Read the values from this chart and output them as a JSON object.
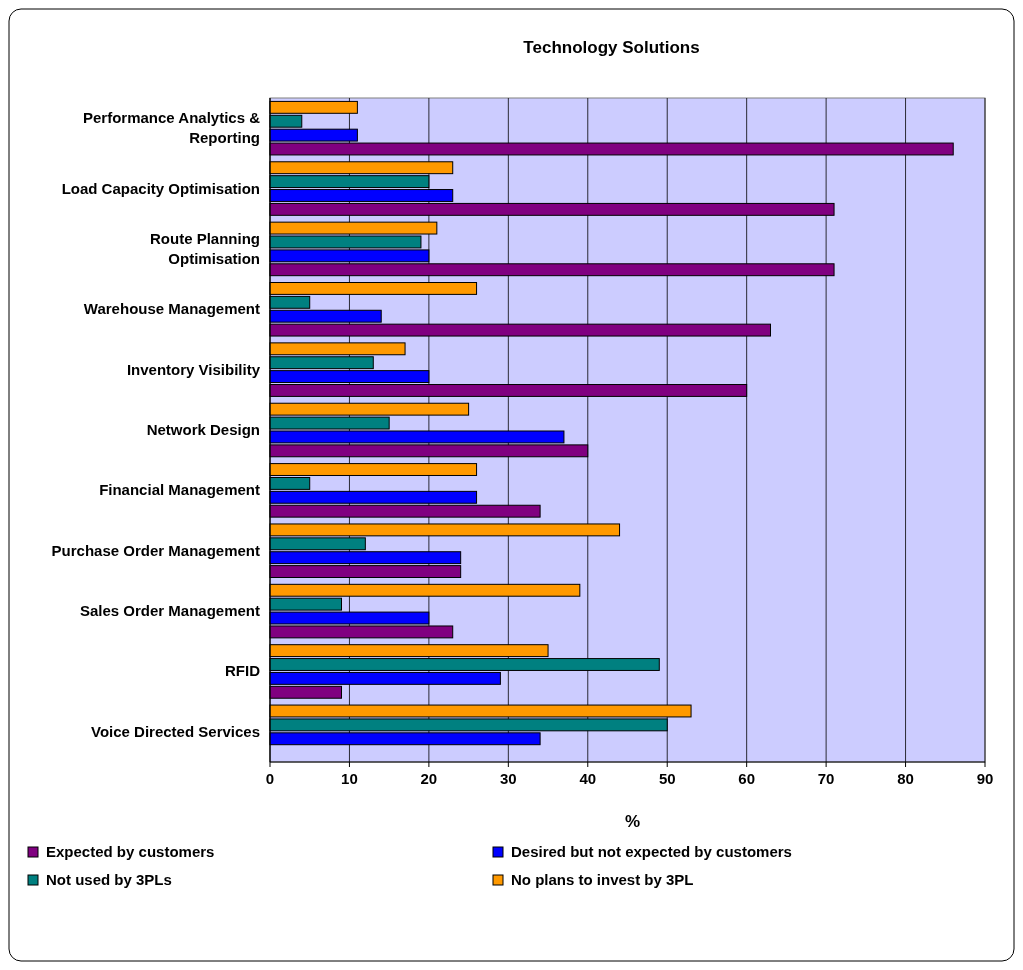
{
  "chart_data": {
    "type": "bar",
    "orientation": "horizontal",
    "title": "Technology Solutions",
    "xlabel": "%",
    "categories": [
      "Performance Analytics & Reporting",
      "Load Capacity Optimisation",
      "Route Planning Optimisation",
      "Warehouse Management",
      "Inventory Visibility",
      "Network Design",
      "Financial Management",
      "Purchase Order Management",
      "Sales Order Management",
      "RFID",
      "Voice Directed Services"
    ],
    "series": [
      {
        "name": "Expected by customers",
        "color": "#800080",
        "values": [
          86,
          71,
          71,
          63,
          60,
          40,
          34,
          24,
          23,
          9,
          0
        ]
      },
      {
        "name": "Desired but not expected by customers",
        "color": "#0000ff",
        "values": [
          11,
          23,
          20,
          14,
          20,
          37,
          26,
          24,
          20,
          29,
          34
        ]
      },
      {
        "name": "Not used by 3PLs",
        "color": "#008080",
        "values": [
          4,
          20,
          19,
          5,
          13,
          15,
          5,
          12,
          9,
          49,
          50
        ]
      },
      {
        "name": "No plans to invest by 3PL",
        "color": "#ff9900",
        "values": [
          11,
          23,
          21,
          26,
          17,
          25,
          26,
          44,
          39,
          35,
          53
        ]
      }
    ],
    "xlim": [
      0,
      90
    ],
    "xticks": [
      0,
      10,
      20,
      30,
      40,
      50,
      60,
      70,
      80,
      90
    ],
    "grid": "x",
    "legend": "bottom"
  }
}
